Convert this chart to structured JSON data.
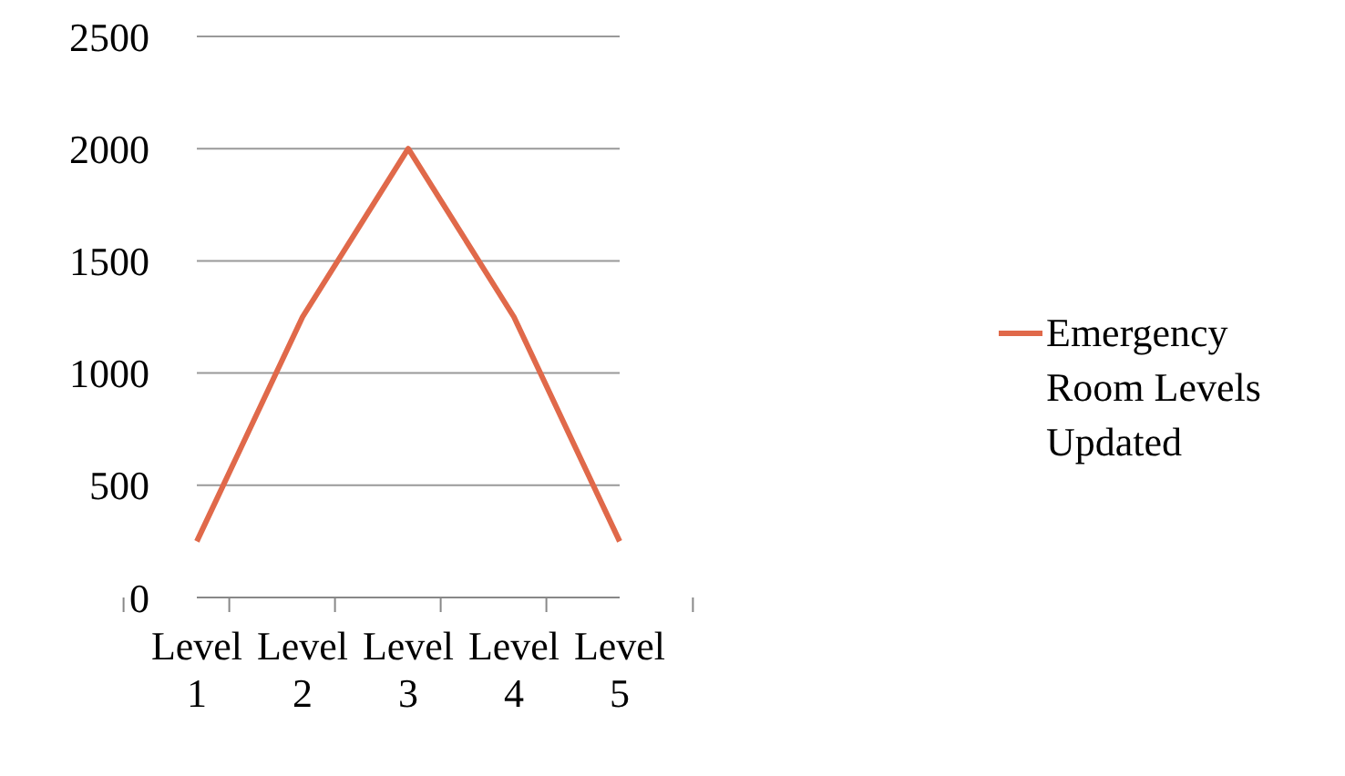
{
  "chart_data": {
    "type": "line",
    "categories": [
      "Level 1",
      "Level 2",
      "Level 3",
      "Level 4",
      "Level 5"
    ],
    "series": [
      {
        "name": "Emergency Room Levels Updated",
        "color": "#e0694a",
        "values": [
          250,
          1250,
          2000,
          1250,
          250
        ]
      }
    ],
    "ylim": [
      0,
      2500
    ],
    "yticks": [
      0,
      500,
      1000,
      1500,
      2000,
      2500
    ],
    "grid": "y",
    "legend": "right",
    "marker": "none"
  }
}
